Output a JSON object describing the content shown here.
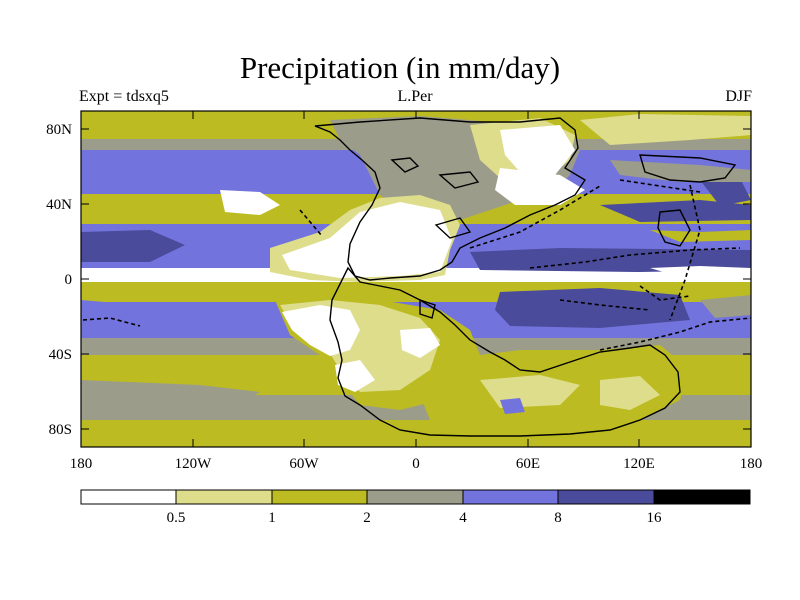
{
  "title": "Precipitation (in mm/day)",
  "subtitle": {
    "left": "Expt = tdsxq5",
    "center": "L.Per",
    "right": "DJF"
  },
  "axes": {
    "lat_ticks": [
      "80N",
      "40N",
      "0",
      "40S",
      "80S"
    ],
    "lon_ticks": [
      "180",
      "120W",
      "60W",
      "0",
      "60E",
      "120E",
      "180"
    ]
  },
  "colorbar": {
    "labels": [
      "0.5",
      "1",
      "2",
      "4",
      "8",
      "16"
    ],
    "colors": [
      "#ffffff",
      "#dedd8c",
      "#bcbc22",
      "#9c9c8b",
      "#7373dd",
      "#4b4b9b",
      "#000000"
    ]
  }
}
